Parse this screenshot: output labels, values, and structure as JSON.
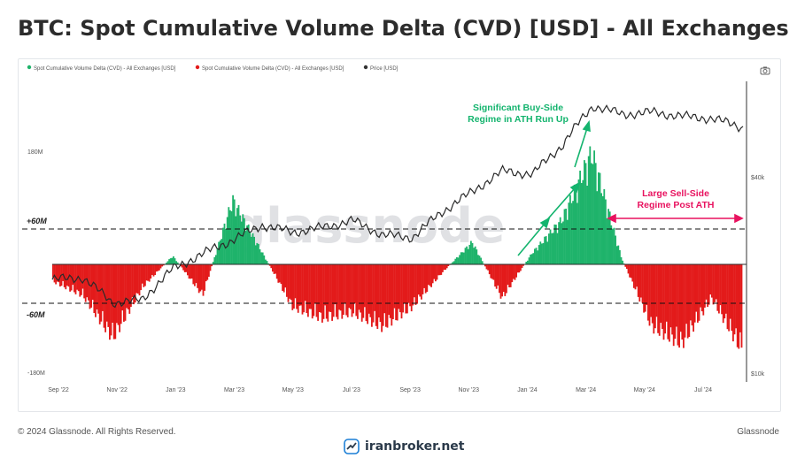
{
  "title": "BTC: Spot Cumulative Volume Delta (CVD) [USD] - All Exchanges",
  "footer": {
    "copyright": "© 2024 Glassnode. All Rights Reserved.",
    "brand": "Glassnode",
    "site": "iranbroker.net"
  },
  "watermark": "glassnode",
  "colors": {
    "positive": "#1fb36b",
    "negative": "#e31b1b",
    "price": "#2a2a2a",
    "annotation_green": "#14b46e",
    "annotation_pink": "#e8125f"
  },
  "chart_data": {
    "type": "bar",
    "legend": [
      {
        "label": "Spot Cumulative Volume Delta (CVD) - All Exchanges [USD]",
        "color": "#1fb36b"
      },
      {
        "label": "Spot Cumulative Volume Delta (CVD) - All Exchanges [USD]",
        "color": "#e31b1b"
      },
      {
        "label": "Price [USD]",
        "color": "#333333"
      }
    ],
    "x_ticks": [
      "Sep '22",
      "Nov '22",
      "Jan '23",
      "Mar '23",
      "May '23",
      "Jul '23",
      "Sep '23",
      "Nov '23",
      "Jan '24",
      "Mar '24",
      "May '24",
      "Jul '24"
    ],
    "y_left_ticks": [
      "180M",
      "-180M"
    ],
    "y_left_range": [
      -180,
      180
    ],
    "y_left_unit": "M USD",
    "y_right_ticks": [
      "$40k",
      "$10k"
    ],
    "reference_lines": [
      {
        "label": "+60M",
        "value": 60
      },
      {
        "label": "-60M",
        "value": -60
      }
    ],
    "annotations": [
      {
        "text": [
          "Significant Buy-Side",
          "Regime in ATH Run Up"
        ],
        "color": "#14b46e"
      },
      {
        "text": [
          "Large Sell-Side",
          "Regime Post ATH"
        ],
        "color": "#e8125f"
      }
    ],
    "cvd_monthly_approx": [
      {
        "month": "Sep '22",
        "value": -30
      },
      {
        "month": "Oct '22",
        "value": -55
      },
      {
        "month": "Nov '22",
        "value": -130
      },
      {
        "month": "Dec '22",
        "value": -40
      },
      {
        "month": "Jan '23",
        "value": 15
      },
      {
        "month": "Feb '23",
        "value": -55
      },
      {
        "month": "Mar '23",
        "value": 115
      },
      {
        "month": "Apr '23",
        "value": 20
      },
      {
        "month": "May '23",
        "value": -75
      },
      {
        "month": "Jun '23",
        "value": -95
      },
      {
        "month": "Jul '23",
        "value": -85
      },
      {
        "month": "Aug '23",
        "value": -110
      },
      {
        "month": "Sep '23",
        "value": -75
      },
      {
        "month": "Oct '23",
        "value": -15
      },
      {
        "month": "Nov '23",
        "value": 40
      },
      {
        "month": "Dec '23",
        "value": -60
      },
      {
        "month": "Jan '24",
        "value": 20
      },
      {
        "month": "Feb '24",
        "value": 80
      },
      {
        "month": "Mar '24",
        "value": 200
      },
      {
        "month": "Apr '24",
        "value": 10
      },
      {
        "month": "May '24",
        "value": -110
      },
      {
        "month": "Jun '24",
        "value": -140
      },
      {
        "month": "Jul '24",
        "value": -60
      },
      {
        "month": "Aug '24",
        "value": -150
      }
    ],
    "price_monthly_approx": [
      {
        "month": "Sep '22",
        "value": 19500
      },
      {
        "month": "Oct '22",
        "value": 19800
      },
      {
        "month": "Nov '22",
        "value": 16500
      },
      {
        "month": "Dec '22",
        "value": 16800
      },
      {
        "month": "Jan '23",
        "value": 21000
      },
      {
        "month": "Feb '23",
        "value": 23500
      },
      {
        "month": "Mar '23",
        "value": 26000
      },
      {
        "month": "Apr '23",
        "value": 29000
      },
      {
        "month": "May '23",
        "value": 27500
      },
      {
        "month": "Jun '23",
        "value": 28500
      },
      {
        "month": "Jul '23",
        "value": 30000
      },
      {
        "month": "Aug '23",
        "value": 27000
      },
      {
        "month": "Sep '23",
        "value": 26500
      },
      {
        "month": "Oct '23",
        "value": 32000
      },
      {
        "month": "Nov '23",
        "value": 37000
      },
      {
        "month": "Dec '23",
        "value": 43000
      },
      {
        "month": "Jan '24",
        "value": 42000
      },
      {
        "month": "Feb '24",
        "value": 52000
      },
      {
        "month": "Mar '24",
        "value": 69000
      },
      {
        "month": "Apr '24",
        "value": 65000
      },
      {
        "month": "May '24",
        "value": 66000
      },
      {
        "month": "Jun '24",
        "value": 64000
      },
      {
        "month": "Jul '24",
        "value": 63000
      },
      {
        "month": "Aug '24",
        "value": 59000
      }
    ]
  }
}
